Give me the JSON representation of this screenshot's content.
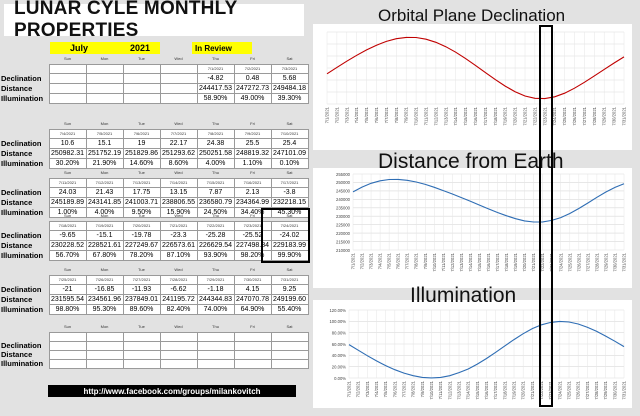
{
  "title": "LUNAR CYLE MONTHLY PROPERTIES",
  "month": "July",
  "year": "2021",
  "review_label": "In Review",
  "row_labels": [
    "Declination",
    "Distance",
    "Illumination"
  ],
  "weekdays": [
    "Sun",
    "Mon",
    "Tue",
    "Wed",
    "Thu",
    "Fri",
    "Sat"
  ],
  "weeks": [
    {
      "dates": [
        "",
        "",
        "",
        "",
        "7/1/2021",
        "7/2/2021",
        "7/3/2021"
      ],
      "declination": [
        "",
        "",
        "",
        "",
        "-4.82",
        "0.48",
        "5.68"
      ],
      "distance": [
        "",
        "",
        "",
        "",
        "244417.53",
        "247272.73",
        "249484.18"
      ],
      "illumination": [
        "",
        "",
        "",
        "",
        "58.90%",
        "49.00%",
        "39.30%"
      ]
    },
    {
      "dates": [
        "7/4/2021",
        "7/5/2021",
        "7/6/2021",
        "7/7/2021",
        "7/8/2021",
        "7/9/2021",
        "7/10/2021"
      ],
      "declination": [
        "10.6",
        "15.1",
        "19",
        "22.17",
        "24.38",
        "25.5",
        "25.4"
      ],
      "distance": [
        "250982.31",
        "251752.19",
        "251829.86",
        "251293.62",
        "250251.58",
        "248819.32",
        "247101.09"
      ],
      "illumination": [
        "30.20%",
        "21.90%",
        "14.60%",
        "8.60%",
        "4.00%",
        "1.10%",
        "0.10%"
      ]
    },
    {
      "dates": [
        "7/11/2021",
        "7/12/2021",
        "7/13/2021",
        "7/14/2021",
        "7/15/2021",
        "7/16/2021",
        "7/17/2021"
      ],
      "declination": [
        "24.03",
        "21.43",
        "17.75",
        "13.15",
        "7.87",
        "2.13",
        "-3.8"
      ],
      "distance": [
        "245189.89",
        "243141.85",
        "241003.71",
        "238806.55",
        "236580.79",
        "234364.99",
        "232218.15"
      ],
      "illumination": [
        "1.00%",
        "4.00%",
        "9.50%",
        "15.90%",
        "24.50%",
        "34.40%",
        "45.30%"
      ]
    },
    {
      "dates": [
        "7/18/2021",
        "7/19/2021",
        "7/20/2021",
        "7/21/2021",
        "7/22/2021",
        "7/23/2021",
        "7/24/2021"
      ],
      "declination": [
        "-9.65",
        "-15.1",
        "-19.78",
        "-23.3",
        "-25.28",
        "-25.52",
        "-24.02"
      ],
      "distance": [
        "230228.52",
        "228521.61",
        "227249.67",
        "226573.61",
        "226629.54",
        "227498.84",
        "229183.99"
      ],
      "illumination": [
        "56.70%",
        "67.80%",
        "78.20%",
        "87.10%",
        "93.90%",
        "98.20%",
        "99.90%"
      ]
    },
    {
      "dates": [
        "7/25/2021",
        "7/26/2021",
        "7/27/2021",
        "7/28/2021",
        "7/29/2021",
        "7/30/2021",
        "7/31/2021"
      ],
      "declination": [
        "-21",
        "-16.85",
        "-11.93",
        "-6.62",
        "-1.18",
        "4.15",
        "9.25"
      ],
      "distance": [
        "231595.54",
        "234561.96",
        "237849.01",
        "241195.72",
        "244344.83",
        "247070.78",
        "249199.60"
      ],
      "illumination": [
        "98.80%",
        "95.30%",
        "89.60%",
        "82.40%",
        "74.00%",
        "64.90%",
        "55.40%"
      ]
    },
    {
      "dates": [
        "",
        "",
        "",
        "",
        "",
        "",
        ""
      ],
      "declination": [
        "",
        "",
        "",
        "",
        "",
        "",
        ""
      ],
      "distance": [
        "",
        "",
        "",
        "",
        "",
        "",
        ""
      ],
      "illumination": [
        "",
        "",
        "",
        "",
        "",
        "",
        ""
      ]
    }
  ],
  "footer_link": "http://www.facebook.com/groups/milankovitch",
  "panels": {
    "declination_title": "Orbital Plane Declination",
    "distance_title": "Distance from Earth",
    "illumination_title": "Illumination"
  },
  "chart_data": [
    {
      "type": "line",
      "title": "Orbital Plane Declination",
      "x": [
        "7/1/2021",
        "7/2/2021",
        "7/3/2021",
        "7/4/2021",
        "7/5/2021",
        "7/6/2021",
        "7/7/2021",
        "7/8/2021",
        "7/9/2021",
        "7/10/2021",
        "7/11/2021",
        "7/12/2021",
        "7/13/2021",
        "7/14/2021",
        "7/15/2021",
        "7/16/2021",
        "7/17/2021",
        "7/18/2021",
        "7/19/2021",
        "7/20/2021",
        "7/21/2021",
        "7/22/2021",
        "7/23/2021",
        "7/24/2021",
        "7/25/2021",
        "7/26/2021",
        "7/27/2021",
        "7/28/2021",
        "7/29/2021",
        "7/30/2021",
        "7/31/2021"
      ],
      "values": [
        -4.82,
        0.48,
        5.68,
        10.6,
        15.1,
        19,
        22.17,
        24.38,
        25.5,
        25.4,
        24.03,
        21.43,
        17.75,
        13.15,
        7.87,
        2.13,
        -3.8,
        -9.65,
        -15.1,
        -19.78,
        -23.3,
        -25.28,
        -25.52,
        -24.02,
        -21,
        -16.85,
        -11.93,
        -6.62,
        -1.18,
        4.15,
        9.25
      ],
      "ylim": [
        -30,
        30
      ],
      "yticks": [],
      "color": "#c00000",
      "grid": true
    },
    {
      "type": "line",
      "title": "Distance from Earth",
      "x": [
        "7/1/2021",
        "7/2/2021",
        "7/3/2021",
        "7/4/2021",
        "7/5/2021",
        "7/6/2021",
        "7/7/2021",
        "7/8/2021",
        "7/9/2021",
        "7/10/2021",
        "7/11/2021",
        "7/12/2021",
        "7/13/2021",
        "7/14/2021",
        "7/15/2021",
        "7/16/2021",
        "7/17/2021",
        "7/18/2021",
        "7/19/2021",
        "7/20/2021",
        "7/21/2021",
        "7/22/2021",
        "7/23/2021",
        "7/24/2021",
        "7/25/2021",
        "7/26/2021",
        "7/27/2021",
        "7/28/2021",
        "7/29/2021",
        "7/30/2021",
        "7/31/2021"
      ],
      "values": [
        244417.53,
        247272.73,
        249484.18,
        250982.31,
        251752.19,
        251829.86,
        251293.62,
        250251.58,
        248819.32,
        247101.09,
        245189.89,
        243141.85,
        241003.71,
        238806.55,
        236580.79,
        234364.99,
        232218.15,
        230228.52,
        228521.61,
        227249.67,
        226573.61,
        226629.54,
        227498.84,
        229183.99,
        231595.54,
        234561.96,
        237849.01,
        241195.72,
        244344.83,
        247070.78,
        249199.6
      ],
      "ylim": [
        210000,
        255000
      ],
      "yticks": [
        "255000",
        "250000",
        "245000",
        "240000",
        "235000",
        "230000",
        "225000",
        "220000",
        "215000",
        "210000"
      ],
      "color": "#2e6db4",
      "grid": true
    },
    {
      "type": "line",
      "title": "Illumination",
      "x": [
        "7/1/2021",
        "7/2/2021",
        "7/3/2021",
        "7/4/2021",
        "7/5/2021",
        "7/6/2021",
        "7/7/2021",
        "7/8/2021",
        "7/9/2021",
        "7/10/2021",
        "7/11/2021",
        "7/12/2021",
        "7/13/2021",
        "7/14/2021",
        "7/15/2021",
        "7/16/2021",
        "7/17/2021",
        "7/18/2021",
        "7/19/2021",
        "7/20/2021",
        "7/21/2021",
        "7/22/2021",
        "7/23/2021",
        "7/24/2021",
        "7/25/2021",
        "7/26/2021",
        "7/27/2021",
        "7/28/2021",
        "7/29/2021",
        "7/30/2021",
        "7/31/2021"
      ],
      "values": [
        58.9,
        49.0,
        39.3,
        30.2,
        21.9,
        14.6,
        8.6,
        4.0,
        1.1,
        0.1,
        1.0,
        4.0,
        9.5,
        15.9,
        24.5,
        34.4,
        45.3,
        56.7,
        67.8,
        78.2,
        87.1,
        93.9,
        98.2,
        99.9,
        98.8,
        95.3,
        89.6,
        82.4,
        74.0,
        64.9,
        55.4
      ],
      "ylim": [
        0,
        120
      ],
      "yticks": [
        "120.00%",
        "100.00%",
        "80.00%",
        "60.00%",
        "40.00%",
        "20.00%",
        "0.00%"
      ],
      "color": "#2e6db4",
      "grid": true
    }
  ]
}
